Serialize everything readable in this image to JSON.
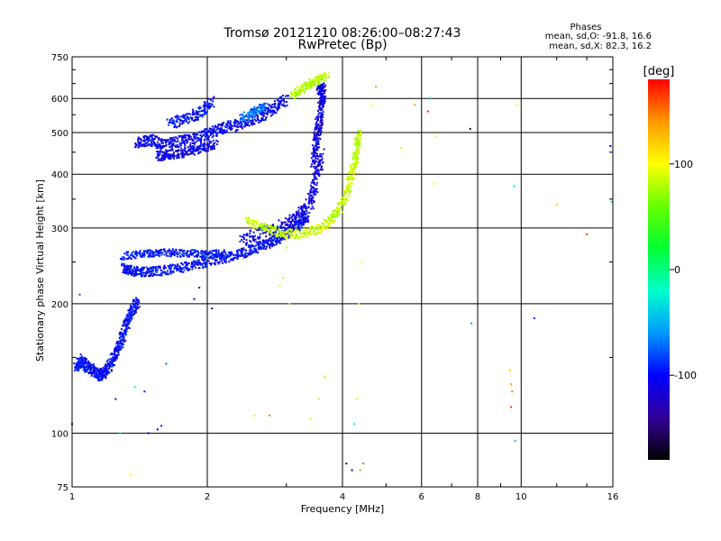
{
  "chart_data": {
    "type": "scatter",
    "title": "Tromsø 20121210 08:26:00–08:27:43",
    "subtitle": "RwPretec (Bp)",
    "xlabel": "Frequency [MHz]",
    "ylabel": "Stationary phase Virtual Height [km]",
    "x_scale": "log",
    "y_scale": "log",
    "xlim": [
      1,
      16
    ],
    "ylim": [
      75,
      750
    ],
    "x_ticks": [
      1,
      2,
      4,
      6,
      8,
      10,
      16
    ],
    "x_tick_labels": [
      "1",
      "2",
      "4",
      "6",
      "8",
      "10",
      "16"
    ],
    "y_ticks": [
      75,
      100,
      200,
      300,
      400,
      500,
      600,
      750
    ],
    "y_tick_labels": [
      "75",
      "100",
      "200",
      "300",
      "400",
      "500",
      "600",
      "750"
    ],
    "grid": true,
    "stats": {
      "title": "Phases",
      "o_line": "mean, sd,O: -91.8, 16.6",
      "x_line": "mean, sd,X:  82.3, 16.2"
    },
    "colorbar": {
      "label": "[deg]",
      "range": [
        -180,
        180
      ],
      "ticks": [
        100,
        0,
        -100
      ],
      "tick_labels": [
        "100",
        "0",
        "-100"
      ],
      "stops": [
        "#ff0000",
        "#ff9900",
        "#ffff00",
        "#66ff00",
        "#00ff33",
        "#00ffcc",
        "#0099ff",
        "#0000ff",
        "#330099",
        "#000000"
      ]
    },
    "series": [
      {
        "trace_segments": [
          {
            "x": [
              1.02,
              1.05,
              1.08,
              1.12,
              1.16,
              1.2,
              1.24,
              1.28,
              1.32,
              1.36,
              1.4
            ],
            "y": [
              142,
              148,
              143,
              139,
              136,
              141,
              150,
              162,
              178,
              192,
              203
            ],
            "phase": -100,
            "spread": 0.03
          },
          {
            "x": [
              1.3,
              1.36,
              1.44,
              1.55,
              1.7,
              1.85,
              2.0,
              2.2,
              2.4,
              2.6,
              2.8,
              3.0,
              3.2,
              3.35
            ],
            "y": [
              242,
              238,
              237,
              238,
              241,
              245,
              250,
              256,
              262,
              270,
              279,
              290,
              305,
              320
            ],
            "phase": -100,
            "spread": 0.025
          },
          {
            "x": [
              1.3,
              1.45,
              1.6,
              1.8,
              2.0,
              2.2
            ],
            "y": [
              258,
              262,
              263,
              262,
              261,
              262
            ],
            "phase": -95,
            "spread": 0.02
          },
          {
            "x": [
              2.4,
              2.7,
              3.0,
              3.2,
              3.4,
              3.5,
              3.6
            ],
            "y": [
              280,
              292,
              305,
              320,
              345,
              390,
              450
            ],
            "phase": -110,
            "spread": 0.04
          },
          {
            "x": [
              3.45,
              3.5,
              3.55,
              3.6,
              3.62,
              3.55
            ],
            "y": [
              420,
              480,
              530,
              590,
              620,
              640
            ],
            "phase": -112,
            "spread": 0.04
          },
          {
            "x": [
              1.4,
              1.5,
              1.6,
              1.75,
              1.9,
              2.05,
              2.2,
              2.4,
              2.6,
              2.8,
              3.0
            ],
            "y": [
              475,
              480,
              470,
              478,
              485,
              500,
              515,
              525,
              545,
              565,
              600
            ],
            "phase": -105,
            "spread": 0.03
          },
          {
            "x": [
              1.55,
              1.65,
              1.8,
              1.95,
              2.1
            ],
            "y": [
              440,
              445,
              450,
              460,
              470
            ],
            "phase": -110,
            "spread": 0.025
          },
          {
            "x": [
              1.65,
              1.8,
              1.95,
              2.05
            ],
            "y": [
              525,
              540,
              560,
              590
            ],
            "phase": -100,
            "spread": 0.03
          },
          {
            "x": [
              2.4,
              2.55,
              2.7
            ],
            "y": [
              540,
              560,
              580
            ],
            "phase": -70,
            "spread": 0.02
          },
          {
            "x": [
              2.45,
              2.7,
              3.0,
              3.3,
              3.6,
              3.85,
              4.05,
              4.2,
              4.3,
              4.35
            ],
            "y": [
              310,
              300,
              290,
              292,
              300,
              320,
              350,
              400,
              450,
              500
            ],
            "phase": 85,
            "spread": 0.025
          },
          {
            "x": [
              3.1,
              3.3,
              3.5,
              3.7
            ],
            "y": [
              610,
              640,
              660,
              680
            ],
            "phase": 80,
            "spread": 0.02
          }
        ]
      },
      {
        "scattered_points": [
          [
            1.0,
            105,
            -125
          ],
          [
            1.08,
            145,
            -70
          ],
          [
            1.04,
            210,
            -80
          ],
          [
            1.25,
            120,
            -100
          ],
          [
            1.28,
            100,
            -30
          ],
          [
            1.35,
            80,
            95
          ],
          [
            1.38,
            128,
            -20
          ],
          [
            1.45,
            125,
            -95
          ],
          [
            1.55,
            102,
            -100
          ],
          [
            1.58,
            104,
            -90
          ],
          [
            1.48,
            100,
            -120
          ],
          [
            1.62,
            145,
            -70
          ],
          [
            1.87,
            205,
            -130
          ],
          [
            1.92,
            218,
            -135
          ],
          [
            2.05,
            195,
            -150
          ],
          [
            2.55,
            110,
            90
          ],
          [
            2.75,
            110,
            150
          ],
          [
            2.95,
            230,
            85
          ],
          [
            3.0,
            270,
            80
          ],
          [
            3.05,
            200,
            85
          ],
          [
            3.4,
            108,
            92
          ],
          [
            3.55,
            120,
            90
          ],
          [
            3.65,
            135,
            85
          ],
          [
            4.35,
            200,
            95
          ],
          [
            4.4,
            250,
            100
          ],
          [
            4.3,
            120,
            110
          ],
          [
            4.25,
            105,
            -10
          ],
          [
            4.45,
            85,
            150
          ],
          [
            4.2,
            82,
            -160
          ],
          [
            4.38,
            82,
            140
          ],
          [
            4.08,
            85,
            -150
          ],
          [
            5.8,
            580,
            140
          ],
          [
            6.3,
            600,
            -40
          ],
          [
            6.2,
            560,
            170
          ],
          [
            6.45,
            490,
            110
          ],
          [
            5.4,
            460,
            90
          ],
          [
            6.4,
            380,
            100
          ],
          [
            7.7,
            510,
            -160
          ],
          [
            7.75,
            180,
            -60
          ],
          [
            9.45,
            140,
            120
          ],
          [
            9.5,
            130,
            140
          ],
          [
            9.55,
            125,
            150
          ],
          [
            9.5,
            115,
            170
          ],
          [
            9.7,
            96,
            -40
          ],
          [
            9.65,
            375,
            -30
          ],
          [
            9.8,
            580,
            100
          ],
          [
            10.7,
            185,
            -85
          ],
          [
            12.0,
            340,
            120
          ],
          [
            14.0,
            290,
            160
          ],
          [
            15.8,
            465,
            -100
          ],
          [
            15.9,
            345,
            -20
          ],
          [
            4.65,
            580,
            100
          ],
          [
            4.75,
            640,
            140
          ],
          [
            2.9,
            220,
            90
          ]
        ]
      }
    ]
  }
}
